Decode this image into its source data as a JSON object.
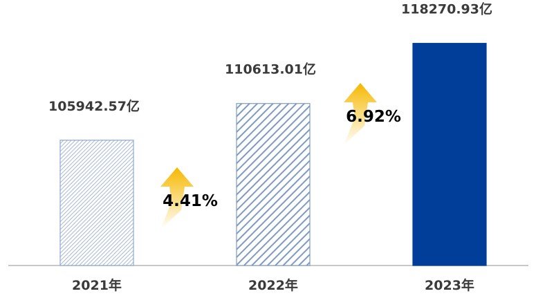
{
  "chart_data": {
    "type": "bar",
    "categories": [
      "2021年",
      "2022年",
      "2023年"
    ],
    "values": [
      105942.57,
      110613.01,
      118270.93
    ],
    "data_labels": [
      "105942.57亿",
      "110613.01亿",
      "118270.93亿"
    ],
    "growth_labels": [
      "4.41%",
      "6.92%"
    ],
    "title": "",
    "xlabel": "",
    "ylabel": "",
    "ylim": [
      90000,
      120000
    ],
    "grid": false,
    "legend": "none",
    "colors": {
      "bar_2021_stroke": "#8fa9cc",
      "bar_2022_stroke": "#7f9bc4",
      "bar_2023_fill": "#003e99",
      "arrow_top": "#f5b800",
      "arrow_bottom": "#ffffff",
      "axis": "#b5b5b5",
      "label_text": "#3a3a3a"
    }
  }
}
